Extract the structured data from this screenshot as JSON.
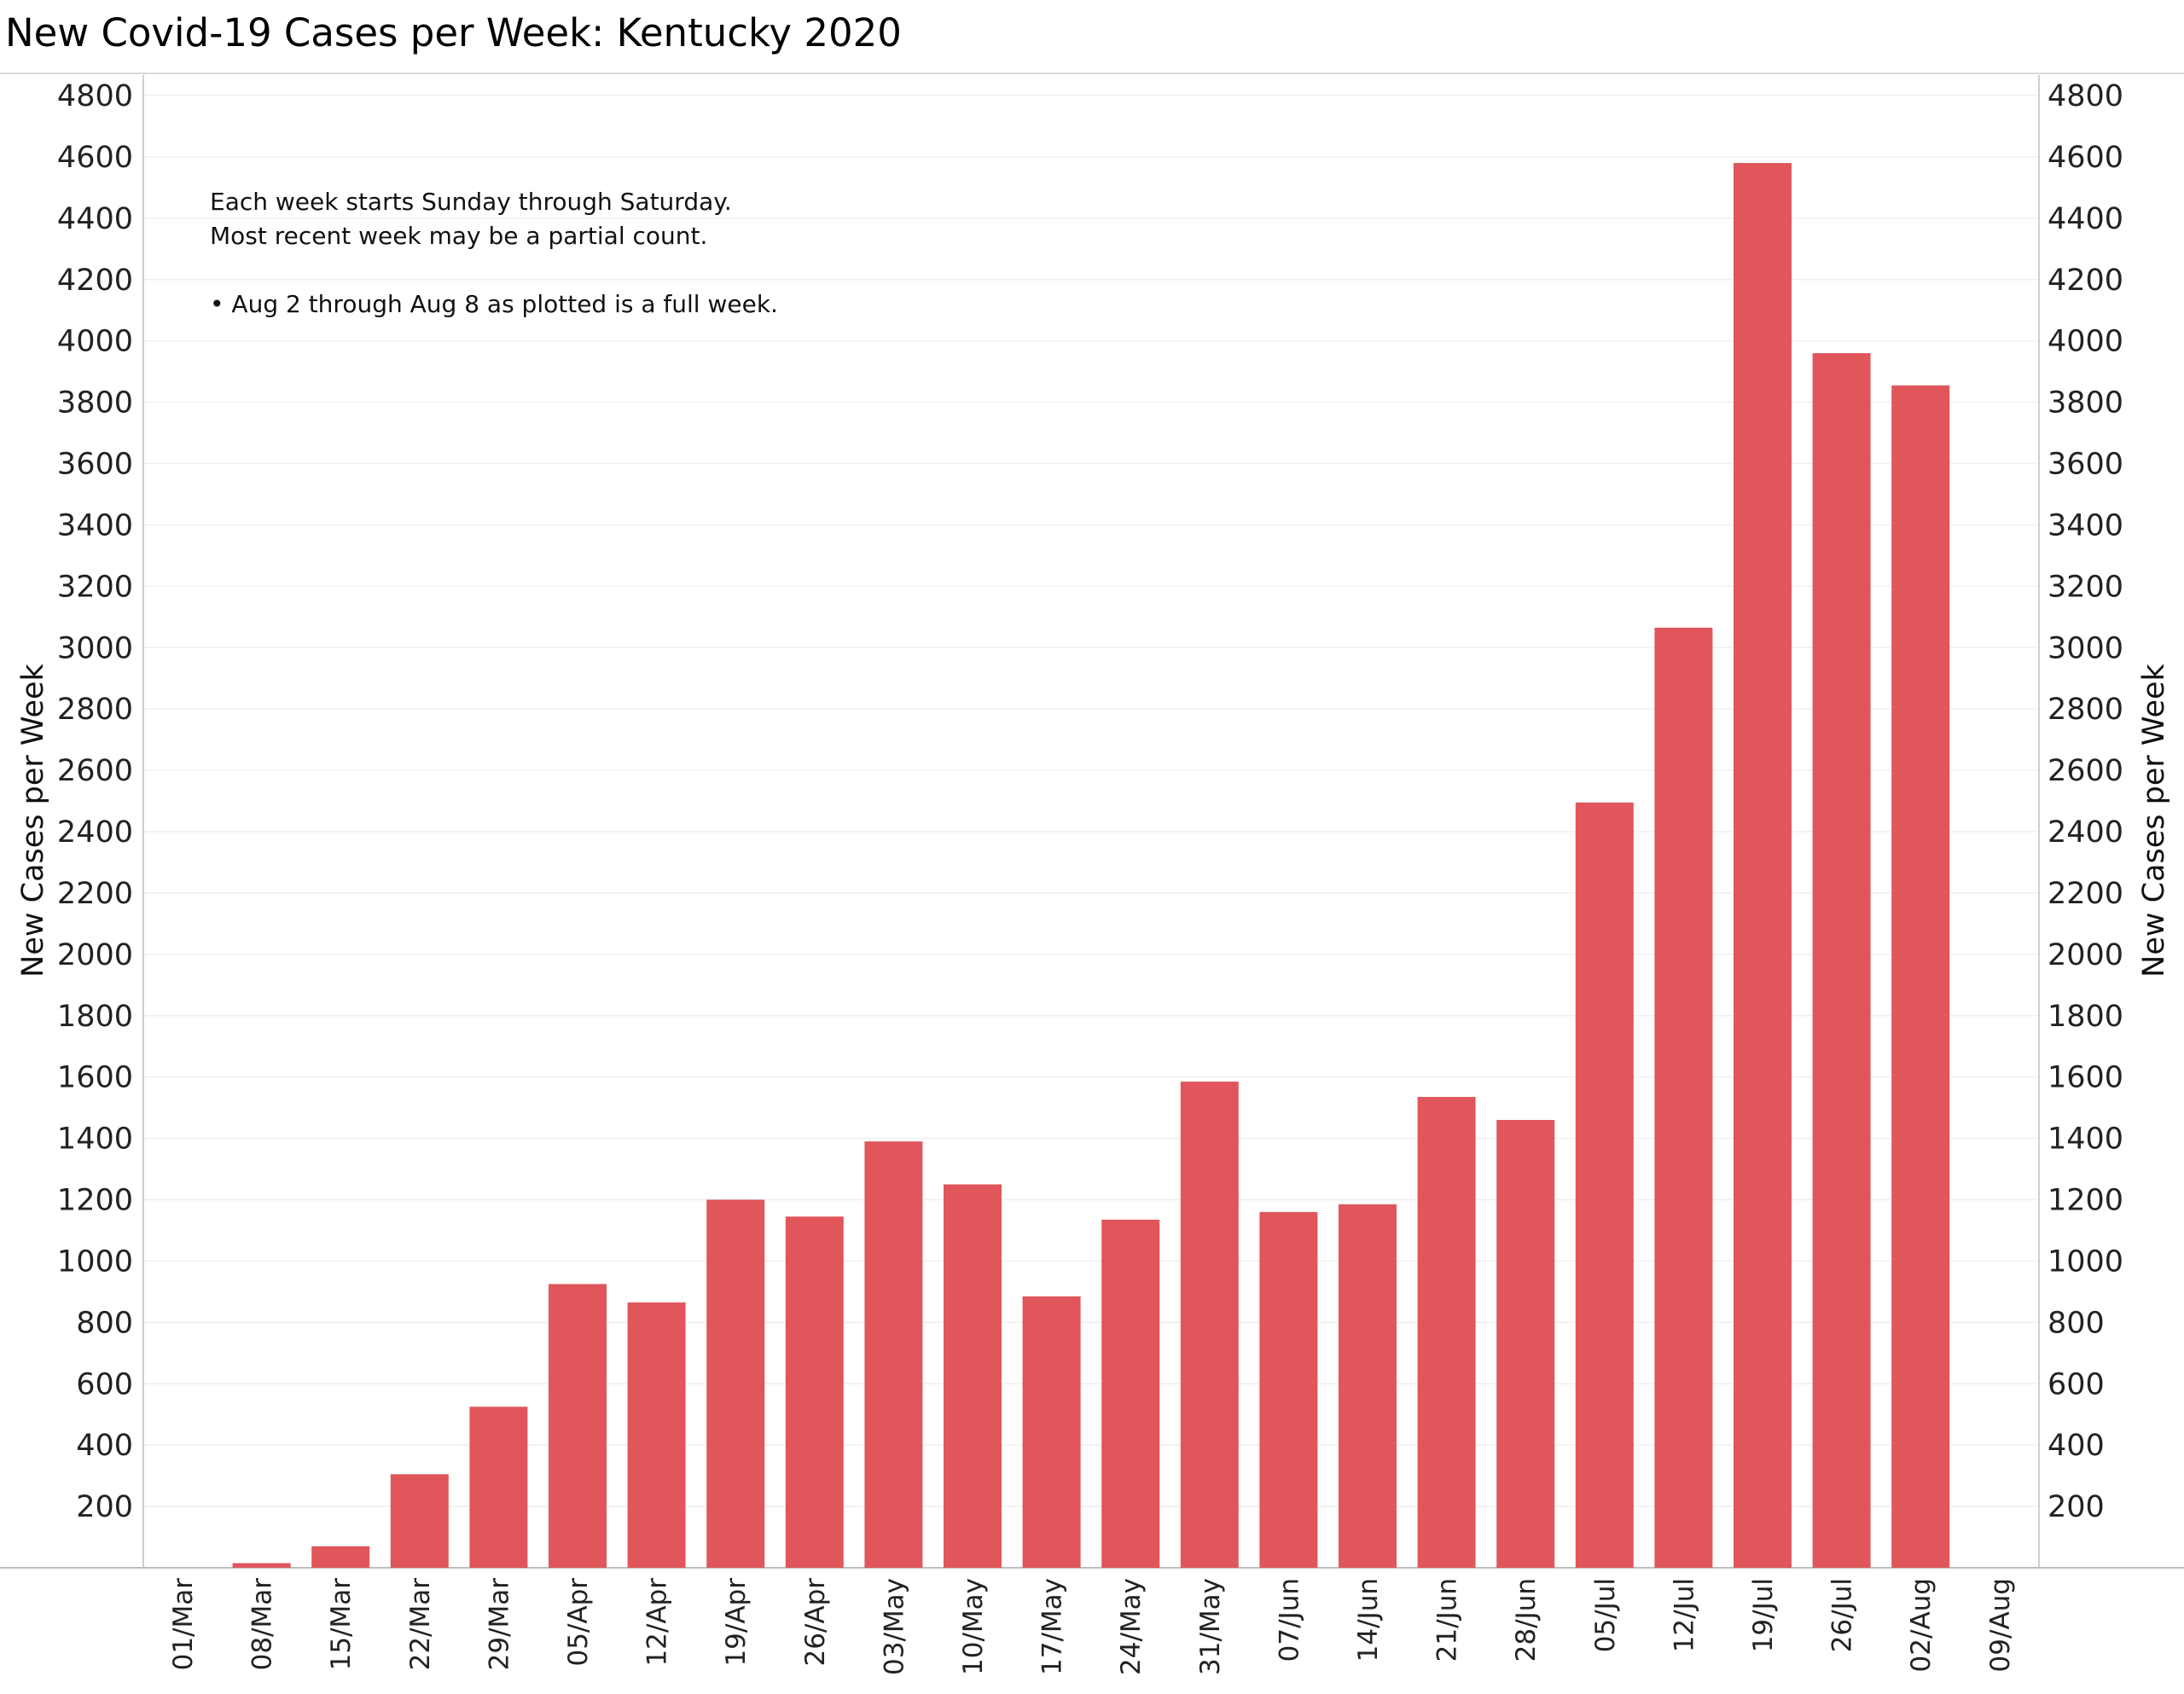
{
  "chart_data": {
    "type": "bar",
    "title": "New Covid-19 Cases per Week:  Kentucky 2020",
    "ylabel": "New Cases per Week",
    "ylabel_right": "New Cases per Week",
    "ylim": [
      0,
      4800
    ],
    "yticks": [
      200,
      400,
      600,
      800,
      1000,
      1200,
      1400,
      1600,
      1800,
      2000,
      2200,
      2400,
      2600,
      2800,
      3000,
      3200,
      3400,
      3600,
      3800,
      4000,
      4200,
      4400,
      4600,
      4800
    ],
    "categories": [
      "01/Mar",
      "08/Mar",
      "15/Mar",
      "22/Mar",
      "29/Mar",
      "05/Apr",
      "12/Apr",
      "19/Apr",
      "26/Apr",
      "03/May",
      "10/May",
      "17/May",
      "24/May",
      "31/May",
      "07/Jun",
      "14/Jun",
      "21/Jun",
      "28/Jun",
      "05/Jul",
      "12/Jul",
      "19/Jul",
      "26/Jul",
      "02/Aug",
      "09/Aug"
    ],
    "values": [
      0,
      15,
      70,
      305,
      525,
      925,
      865,
      1200,
      1145,
      1390,
      1250,
      885,
      1135,
      1585,
      1160,
      1185,
      1535,
      1460,
      2495,
      3065,
      4580,
      3960,
      3855,
      0
    ],
    "bar_color": "#e0565b",
    "grid": true,
    "annotations": [
      "Each week starts Sunday through Saturday.",
      "Most recent week may be a partial count.",
      "• Aug 2 through Aug 8 as plotted is a full week."
    ]
  }
}
